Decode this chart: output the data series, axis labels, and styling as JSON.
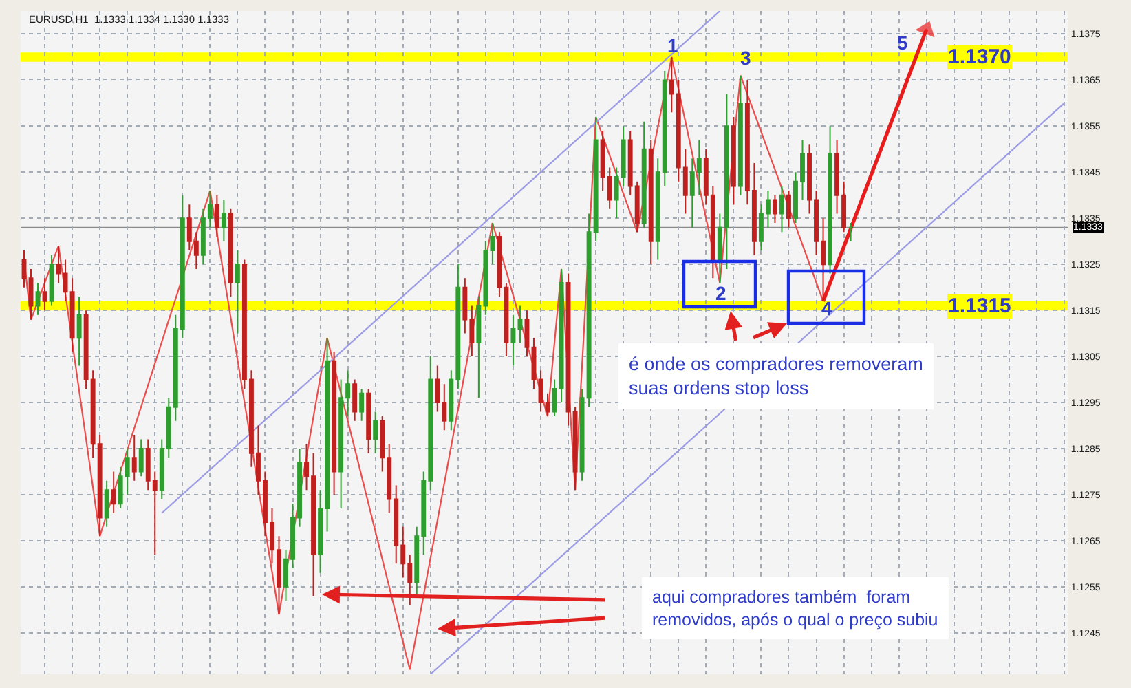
{
  "chart_data": {
    "type": "candlestick",
    "title": "EURUSD,H1  1.1333 1.1334 1.1330 1.1333",
    "categories": [
      null,
      null,
      null,
      null,
      null,
      null,
      null,
      null,
      null,
      null,
      null,
      null,
      null,
      null,
      null,
      null,
      null,
      null,
      null,
      null,
      null,
      null,
      null,
      null,
      null,
      null,
      null,
      null,
      null,
      null,
      null,
      null,
      null,
      null,
      null,
      null,
      null,
      null,
      null,
      null,
      null,
      null,
      null,
      null,
      null,
      null,
      null,
      null,
      null,
      null,
      null,
      null,
      null,
      null,
      null,
      null,
      null,
      null,
      null,
      null,
      null,
      null,
      null,
      null,
      null,
      null,
      null,
      null,
      null,
      null,
      null,
      null,
      null,
      null,
      null,
      null,
      null,
      null,
      null,
      null,
      null,
      null,
      null,
      null,
      null,
      null,
      null,
      null,
      null,
      null,
      null,
      null,
      null,
      null,
      null,
      null,
      null,
      null,
      null,
      null,
      null,
      null,
      null,
      null,
      null,
      null,
      null,
      null,
      null,
      null,
      null,
      null,
      null,
      null,
      null,
      null,
      null,
      null,
      null,
      null,
      null,
      null,
      null,
      null,
      null,
      null,
      null,
      null,
      null,
      null,
      null,
      null,
      null,
      null,
      null,
      null,
      null,
      null,
      null,
      null,
      null,
      null,
      null,
      null,
      null,
      null,
      null,
      null,
      null,
      null,
      null,
      null
    ],
    "ohlc": [
      [
        1.1326,
        1.1328,
        1.132,
        1.1322
      ],
      [
        1.1322,
        1.1324,
        1.1313,
        1.1316
      ],
      [
        1.1316,
        1.1321,
        1.1314,
        1.1319
      ],
      [
        1.1319,
        1.1322,
        1.1315,
        1.1317
      ],
      [
        1.1317,
        1.1327,
        1.1316,
        1.1325
      ],
      [
        1.1325,
        1.1329,
        1.1321,
        1.1323
      ],
      [
        1.1323,
        1.1326,
        1.1317,
        1.1319
      ],
      [
        1.1319,
        1.1322,
        1.1306,
        1.1309
      ],
      [
        1.1309,
        1.1318,
        1.1303,
        1.1314
      ],
      [
        1.1314,
        1.1315,
        1.1298,
        1.13
      ],
      [
        1.13,
        1.1302,
        1.1283,
        1.1286
      ],
      [
        1.1286,
        1.1288,
        1.1266,
        1.127
      ],
      [
        1.127,
        1.1278,
        1.1268,
        1.1276
      ],
      [
        1.1276,
        1.128,
        1.1271,
        1.1273
      ],
      [
        1.1273,
        1.1281,
        1.1272,
        1.1279
      ],
      [
        1.1279,
        1.1285,
        1.1275,
        1.1283
      ],
      [
        1.1283,
        1.1288,
        1.1278,
        1.128
      ],
      [
        1.128,
        1.1287,
        1.1279,
        1.1285
      ],
      [
        1.1285,
        1.1287,
        1.1276,
        1.1278
      ],
      [
        1.1278,
        1.128,
        1.1262,
        1.1276
      ],
      [
        1.1276,
        1.1287,
        1.1274,
        1.1285
      ],
      [
        1.1285,
        1.1296,
        1.1283,
        1.1294
      ],
      [
        1.1294,
        1.1314,
        1.1291,
        1.1311
      ],
      [
        1.1311,
        1.134,
        1.1309,
        1.1335
      ],
      [
        1.1335,
        1.1338,
        1.1328,
        1.133
      ],
      [
        1.133,
        1.1332,
        1.1324,
        1.1327
      ],
      [
        1.1327,
        1.1337,
        1.1325,
        1.1335
      ],
      [
        1.1335,
        1.1341,
        1.1333,
        1.1338
      ],
      [
        1.1338,
        1.134,
        1.1331,
        1.1333
      ],
      [
        1.1333,
        1.1339,
        1.133,
        1.1336
      ],
      [
        1.1336,
        1.1337,
        1.1318,
        1.1321
      ],
      [
        1.1321,
        1.1328,
        1.131,
        1.1325
      ],
      [
        1.1325,
        1.1326,
        1.1298,
        1.13
      ],
      [
        1.13,
        1.1302,
        1.1281,
        1.1284
      ],
      [
        1.1284,
        1.129,
        1.1275,
        1.1278
      ],
      [
        1.1278,
        1.128,
        1.1266,
        1.1269
      ],
      [
        1.1269,
        1.1272,
        1.126,
        1.1263
      ],
      [
        1.1263,
        1.1266,
        1.1249,
        1.1255
      ],
      [
        1.1255,
        1.1263,
        1.1252,
        1.1261
      ],
      [
        1.1261,
        1.1273,
        1.1259,
        1.127
      ],
      [
        1.127,
        1.1285,
        1.1268,
        1.1282
      ],
      [
        1.1282,
        1.1286,
        1.1276,
        1.1279
      ],
      [
        1.1279,
        1.1284,
        1.1253,
        1.1262
      ],
      [
        1.1262,
        1.1276,
        1.1258,
        1.1272
      ],
      [
        1.1272,
        1.1309,
        1.1267,
        1.1304
      ],
      [
        1.1304,
        1.1306,
        1.1275,
        1.128
      ],
      [
        1.128,
        1.13,
        1.1272,
        1.1296
      ],
      [
        1.1296,
        1.1302,
        1.1292,
        1.1299
      ],
      [
        1.1299,
        1.13,
        1.1291,
        1.1293
      ],
      [
        1.1293,
        1.1298,
        1.1291,
        1.1297
      ],
      [
        1.1297,
        1.1298,
        1.1284,
        1.1287
      ],
      [
        1.1287,
        1.1293,
        1.1284,
        1.1291
      ],
      [
        1.1291,
        1.1292,
        1.128,
        1.1283
      ],
      [
        1.1283,
        1.1286,
        1.1271,
        1.1274
      ],
      [
        1.1274,
        1.1277,
        1.126,
        1.1264
      ],
      [
        1.1264,
        1.1268,
        1.1257,
        1.126
      ],
      [
        1.126,
        1.1262,
        1.1251,
        1.1256
      ],
      [
        1.1256,
        1.1268,
        1.1253,
        1.1266
      ],
      [
        1.1266,
        1.128,
        1.1262,
        1.1278
      ],
      [
        1.1278,
        1.1305,
        1.1276,
        1.13
      ],
      [
        1.13,
        1.1303,
        1.1293,
        1.1295
      ],
      [
        1.1295,
        1.1299,
        1.1289,
        1.1291
      ],
      [
        1.1291,
        1.1302,
        1.1289,
        1.13
      ],
      [
        1.13,
        1.1325,
        1.1298,
        1.132
      ],
      [
        1.132,
        1.1322,
        1.131,
        1.1313
      ],
      [
        1.1313,
        1.1316,
        1.1305,
        1.1308
      ],
      [
        1.1308,
        1.1318,
        1.1296,
        1.1316
      ],
      [
        1.1316,
        1.133,
        1.1314,
        1.1328
      ],
      [
        1.1328,
        1.1334,
        1.1325,
        1.1331
      ],
      [
        1.1331,
        1.1332,
        1.1318,
        1.132
      ],
      [
        1.132,
        1.1321,
        1.1305,
        1.1308
      ],
      [
        1.1308,
        1.1314,
        1.1303,
        1.1311
      ],
      [
        1.1311,
        1.1316,
        1.1308,
        1.1313
      ],
      [
        1.1313,
        1.1315,
        1.1305,
        1.1307
      ],
      [
        1.1307,
        1.1309,
        1.1298,
        1.13
      ],
      [
        1.13,
        1.1302,
        1.1293,
        1.1295
      ],
      [
        1.1295,
        1.1297,
        1.1292,
        1.1293
      ],
      [
        1.1293,
        1.13,
        1.1292,
        1.1298
      ],
      [
        1.1298,
        1.1324,
        1.1295,
        1.1321
      ],
      [
        1.1321,
        1.1323,
        1.129,
        1.1293
      ],
      [
        1.1293,
        1.1294,
        1.1276,
        1.128
      ],
      [
        1.128,
        1.1298,
        1.1278,
        1.1296
      ],
      [
        1.1296,
        1.1336,
        1.1294,
        1.1332
      ],
      [
        1.1332,
        1.1357,
        1.133,
        1.1352
      ],
      [
        1.1352,
        1.1354,
        1.1341,
        1.1344
      ],
      [
        1.1344,
        1.1346,
        1.1337,
        1.1339
      ],
      [
        1.1339,
        1.1346,
        1.1335,
        1.1344
      ],
      [
        1.1344,
        1.1355,
        1.1342,
        1.1352
      ],
      [
        1.1352,
        1.1354,
        1.134,
        1.1342
      ],
      [
        1.1342,
        1.1343,
        1.1332,
        1.1334
      ],
      [
        1.1334,
        1.1356,
        1.1333,
        1.135
      ],
      [
        1.135,
        1.1352,
        1.1325,
        1.133
      ],
      [
        1.133,
        1.1348,
        1.1326,
        1.1345
      ],
      [
        1.1345,
        1.1367,
        1.1342,
        1.1365
      ],
      [
        1.1365,
        1.137,
        1.1358,
        1.1362
      ],
      [
        1.1362,
        1.1365,
        1.1343,
        1.1346
      ],
      [
        1.1346,
        1.135,
        1.1336,
        1.134
      ],
      [
        1.134,
        1.1348,
        1.1333,
        1.1345
      ],
      [
        1.1345,
        1.1352,
        1.134,
        1.1348
      ],
      [
        1.1348,
        1.135,
        1.1338,
        1.134
      ],
      [
        1.134,
        1.1342,
        1.1322,
        1.1326
      ],
      [
        1.1326,
        1.1336,
        1.1321,
        1.1333
      ],
      [
        1.1333,
        1.1362,
        1.1324,
        1.1355
      ],
      [
        1.1355,
        1.1357,
        1.1338,
        1.1342
      ],
      [
        1.1342,
        1.1366,
        1.134,
        1.136
      ],
      [
        1.136,
        1.1365,
        1.1338,
        1.1341
      ],
      [
        1.1341,
        1.1347,
        1.1327,
        1.133
      ],
      [
        1.133,
        1.1338,
        1.1328,
        1.1336
      ],
      [
        1.1336,
        1.1341,
        1.1333,
        1.1339
      ],
      [
        1.1339,
        1.134,
        1.1334,
        1.1336
      ],
      [
        1.1336,
        1.1342,
        1.1332,
        1.134
      ],
      [
        1.134,
        1.1341,
        1.1333,
        1.1335
      ],
      [
        1.1335,
        1.1345,
        1.1334,
        1.1343
      ],
      [
        1.1343,
        1.1352,
        1.1339,
        1.1349
      ],
      [
        1.1349,
        1.1351,
        1.1336,
        1.1339
      ],
      [
        1.1339,
        1.1341,
        1.1327,
        1.133
      ],
      [
        1.133,
        1.1335,
        1.1317,
        1.1325
      ],
      [
        1.1325,
        1.1355,
        1.1323,
        1.1349
      ],
      [
        1.1349,
        1.1352,
        1.1336,
        1.134
      ],
      [
        1.134,
        1.1343,
        1.1332,
        1.1333
      ],
      [
        1.1333,
        1.1334,
        1.133,
        1.1333
      ],
      null,
      null,
      null,
      null,
      null,
      null,
      null,
      null,
      null,
      null,
      null,
      null,
      null,
      null,
      null,
      null,
      null,
      null,
      null,
      null,
      null,
      null,
      null,
      null,
      null,
      null,
      null,
      null,
      null,
      null,
      null
    ],
    "colors": [
      "#c0201e",
      "#c0201e",
      "#2e9e2e",
      "#c0201e",
      "#2e9e2e",
      "#c0201e",
      "#c0201e",
      "#c0201e",
      "#2e9e2e",
      "#c0201e",
      "#c0201e",
      "#c0201e",
      "#2e9e2e",
      "#c0201e",
      "#2e9e2e",
      "#2e9e2e",
      "#c0201e",
      "#2e9e2e",
      "#c0201e",
      "#c0201e",
      "#2e9e2e",
      "#2e9e2e",
      "#2e9e2e",
      "#2e9e2e",
      "#c0201e",
      "#c0201e",
      "#2e9e2e",
      "#2e9e2e",
      "#c0201e",
      "#2e9e2e",
      "#c0201e",
      "#2e9e2e",
      "#c0201e",
      "#c0201e",
      "#c0201e",
      "#c0201e",
      "#c0201e",
      "#c0201e",
      "#2e9e2e",
      "#2e9e2e",
      "#2e9e2e",
      "#c0201e",
      "#c0201e",
      "#2e9e2e",
      "#2e9e2e",
      "#c0201e",
      "#2e9e2e",
      "#2e9e2e",
      "#c0201e",
      "#2e9e2e",
      "#c0201e",
      "#2e9e2e",
      "#c0201e",
      "#c0201e",
      "#c0201e",
      "#c0201e",
      "#c0201e",
      "#2e9e2e",
      "#2e9e2e",
      "#2e9e2e",
      "#c0201e",
      "#c0201e",
      "#2e9e2e",
      "#2e9e2e",
      "#c0201e",
      "#c0201e",
      "#2e9e2e",
      "#2e9e2e",
      "#2e9e2e",
      "#c0201e",
      "#c0201e",
      "#2e9e2e",
      "#2e9e2e",
      "#c0201e",
      "#c0201e",
      "#c0201e",
      "#c0201e",
      "#2e9e2e",
      "#2e9e2e",
      "#c0201e",
      "#c0201e",
      "#2e9e2e",
      "#2e9e2e",
      "#2e9e2e",
      "#c0201e",
      "#c0201e",
      "#2e9e2e",
      "#2e9e2e",
      "#c0201e",
      "#c0201e",
      "#2e9e2e",
      "#c0201e",
      "#2e9e2e",
      "#2e9e2e",
      "#c0201e",
      "#c0201e",
      "#c0201e",
      "#2e9e2e",
      "#2e9e2e",
      "#c0201e",
      "#c0201e",
      "#2e9e2e",
      "#2e9e2e",
      "#c0201e",
      "#2e9e2e",
      "#c0201e",
      "#c0201e",
      "#2e9e2e",
      "#2e9e2e",
      "#c0201e",
      "#2e9e2e",
      "#c0201e",
      "#2e9e2e",
      "#2e9e2e",
      "#c0201e",
      "#c0201e",
      "#c0201e",
      "#2e9e2e",
      "#c0201e",
      "#c0201e",
      "#2e9e2e",
      null,
      null,
      null,
      null,
      null,
      null,
      null,
      null,
      null,
      null,
      null,
      null,
      null,
      null,
      null,
      null,
      null,
      null,
      null,
      null,
      null,
      null,
      null,
      null,
      null,
      null,
      null,
      null,
      null,
      null,
      null
    ],
    "series": [
      {
        "type": "line",
        "color": "#ec4c4c",
        "values": [
          1.1326,
          1.1313,
          null,
          null,
          null,
          1.1329,
          null,
          null,
          null,
          null,
          null,
          1.1266,
          null,
          null,
          null,
          null,
          null,
          null,
          null,
          null,
          null,
          null,
          null,
          null,
          null,
          null,
          null,
          1.1341,
          null,
          null,
          null,
          null,
          null,
          null,
          null,
          null,
          null,
          1.1249,
          null,
          null,
          null,
          null,
          null,
          null,
          1.1309,
          null,
          null,
          null,
          null,
          null,
          null,
          null,
          null,
          null,
          null,
          null,
          1.1237,
          null,
          null,
          null,
          null,
          null,
          null,
          null,
          null,
          null,
          null,
          null,
          1.1334,
          null,
          null,
          null,
          null,
          null,
          null,
          null,
          1.1292,
          null,
          1.1324,
          null,
          1.1276,
          null,
          null,
          1.1357,
          null,
          null,
          null,
          null,
          null,
          1.1332,
          null,
          null,
          null,
          null,
          1.137,
          null,
          null,
          null,
          null,
          null,
          null,
          1.1321,
          null,
          null,
          1.1366,
          null,
          null,
          null,
          null,
          null,
          null,
          null,
          null,
          null,
          null,
          null,
          1.1317,
          null,
          null,
          null,
          null,
          null,
          null,
          null,
          null,
          null,
          null,
          null,
          null,
          null,
          null,
          null,
          null,
          null,
          null,
          null,
          null,
          null,
          null,
          null,
          null,
          null,
          null,
          null,
          null,
          null,
          null,
          null,
          null,
          null,
          null,
          null
        ]
      },
      {
        "type": "line",
        "color": "#9c9ce6",
        "values": [
          null,
          null,
          null,
          null,
          null,
          null,
          null,
          null,
          null,
          null,
          null,
          null,
          null,
          null,
          null,
          null,
          null,
          null,
          null,
          null,
          1.1271,
          null,
          null,
          null,
          null,
          null,
          null,
          null,
          null,
          null,
          null,
          null,
          null,
          null,
          null,
          null,
          null,
          null,
          null,
          null,
          null,
          null,
          null,
          null,
          null,
          null,
          null,
          null,
          null,
          null,
          null,
          null,
          null,
          null,
          null,
          null,
          null,
          null,
          null,
          null,
          null,
          null,
          null,
          null,
          null,
          null,
          null,
          null,
          null,
          null,
          null,
          null,
          null,
          null,
          null,
          null,
          null,
          null,
          null,
          null,
          null,
          null,
          null,
          null,
          null,
          null,
          null,
          null,
          null,
          null,
          null,
          null,
          null,
          null,
          null,
          null,
          null,
          null,
          null,
          null,
          null,
          1.138,
          null,
          null,
          null,
          null,
          null,
          null,
          null,
          null,
          null,
          null,
          null,
          null,
          null,
          null,
          null,
          null,
          null,
          null,
          null,
          null,
          null,
          null,
          null,
          null,
          null,
          null,
          null,
          null,
          null,
          null,
          null,
          null,
          null,
          null,
          null,
          null,
          null,
          null,
          null,
          null,
          null,
          null,
          null,
          null,
          null,
          null,
          null,
          null,
          null,
          null
        ]
      },
      {
        "type": "line",
        "color": "#9c9ce6",
        "values": [
          null,
          null,
          null,
          null,
          null,
          null,
          null,
          null,
          null,
          null,
          null,
          null,
          null,
          null,
          null,
          null,
          null,
          null,
          null,
          null,
          null,
          null,
          null,
          null,
          null,
          null,
          null,
          null,
          null,
          null,
          null,
          null,
          null,
          null,
          null,
          null,
          null,
          null,
          null,
          null,
          null,
          null,
          null,
          null,
          null,
          null,
          null,
          null,
          null,
          null,
          null,
          null,
          null,
          null,
          null,
          null,
          null,
          null,
          null,
          1.1236,
          null,
          null,
          null,
          null,
          null,
          null,
          null,
          null,
          null,
          null,
          null,
          null,
          null,
          null,
          null,
          null,
          null,
          null,
          null,
          null,
          null,
          null,
          null,
          null,
          null,
          null,
          null,
          null,
          null,
          null,
          null,
          null,
          null,
          null,
          null,
          null,
          null,
          null,
          null,
          null,
          null,
          null,
          null,
          null,
          null,
          null,
          null,
          null,
          null,
          null,
          null,
          null,
          null,
          null,
          null,
          null,
          null,
          null,
          null,
          null,
          null,
          null,
          null,
          null,
          null,
          null,
          null,
          null,
          null,
          null,
          null,
          null,
          null,
          null,
          null,
          null,
          null,
          null,
          null,
          null,
          null,
          null,
          null,
          null,
          null,
          null,
          null,
          null,
          null,
          null,
          null,
          1.136
        ]
      },
      {
        "type": "line",
        "color": "#e81c1c",
        "marker": "triangle",
        "values": [
          null,
          null,
          null,
          null,
          null,
          null,
          null,
          null,
          null,
          null,
          null,
          null,
          null,
          null,
          null,
          null,
          null,
          null,
          null,
          null,
          null,
          null,
          null,
          null,
          null,
          null,
          null,
          null,
          null,
          null,
          null,
          null,
          null,
          null,
          null,
          null,
          null,
          null,
          null,
          null,
          null,
          null,
          null,
          null,
          null,
          null,
          null,
          null,
          null,
          null,
          null,
          null,
          null,
          null,
          null,
          null,
          null,
          null,
          null,
          null,
          null,
          null,
          null,
          null,
          null,
          null,
          null,
          null,
          null,
          null,
          null,
          null,
          null,
          null,
          null,
          null,
          null,
          null,
          null,
          null,
          null,
          null,
          null,
          null,
          null,
          null,
          null,
          null,
          null,
          null,
          null,
          null,
          null,
          null,
          null,
          null,
          null,
          null,
          null,
          null,
          null,
          null,
          null,
          null,
          null,
          null,
          null,
          null,
          null,
          null,
          null,
          null,
          null,
          null,
          null,
          null,
          1.1317,
          null,
          null,
          null,
          null,
          null,
          null,
          null,
          null,
          null,
          null,
          null,
          null,
          null,
          null,
          1.1376,
          null,
          null,
          null,
          null,
          null,
          null,
          null,
          null,
          null,
          null,
          null,
          null,
          null,
          null,
          null,
          null,
          null,
          null,
          null,
          null
        ]
      }
    ],
    "ylim": [
      1.1236,
      1.138
    ],
    "yticks": [
      1.1245,
      1.1255,
      1.1265,
      1.1275,
      1.1285,
      1.1295,
      1.1305,
      1.1315,
      1.1325,
      1.1335,
      1.1345,
      1.1355,
      1.1365,
      1.1375
    ],
    "ref_lines": [
      {
        "axis": "y",
        "value": 1.1333,
        "label": "1.1333",
        "color": "#8a8a8a"
      }
    ],
    "bands": [
      {
        "axis": "y",
        "from": 1.1369,
        "to": 1.1371,
        "label": "1.1370",
        "color": "#ffff00"
      },
      {
        "axis": "y",
        "from": 1.1315,
        "to": 1.1317,
        "label": "1.1315",
        "color": "#ffff00"
      }
    ],
    "annotations": [
      {
        "text": "1",
        "y": 1.137
      },
      {
        "text": "2",
        "y": 1.1321
      },
      {
        "text": "3",
        "y": 1.1366
      },
      {
        "text": "4",
        "y": 1.1317
      },
      "5",
      "é onde os compradores removeram\nsuas ordens stop loss",
      "aqui compradores também  foram\nremovidos, após o qual o preço subiu"
    ],
    "grid": true,
    "tick_labels": "y"
  }
}
